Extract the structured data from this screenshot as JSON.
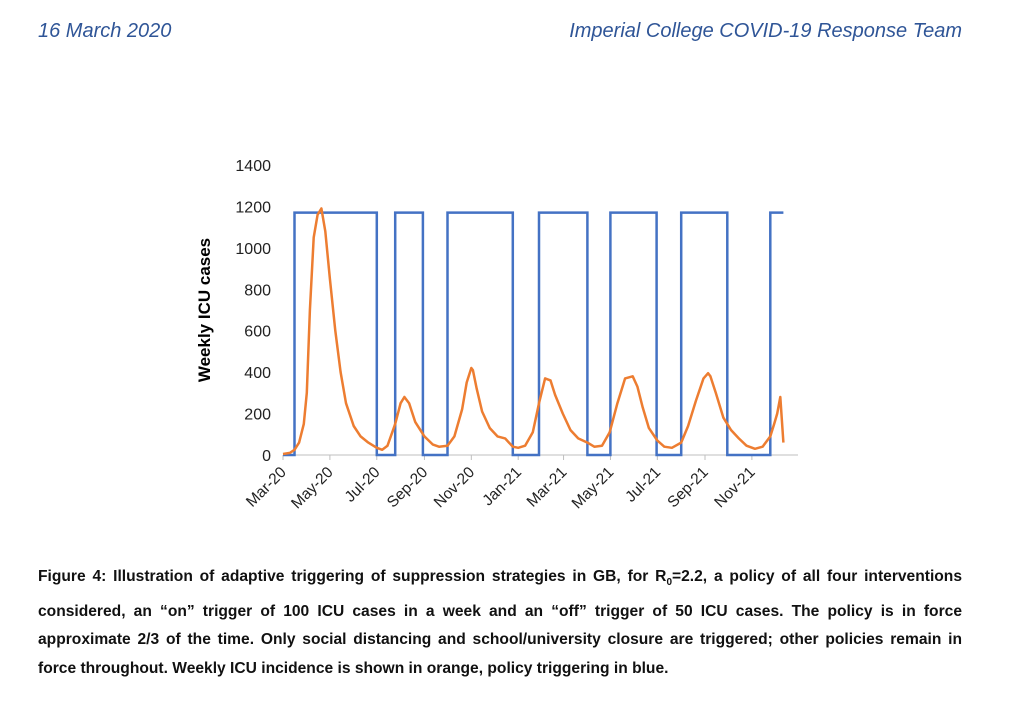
{
  "header": {
    "date": "16 March 2020",
    "team": "Imperial College COVID-19 Response Team"
  },
  "colors": {
    "icu": "#ed7d31",
    "policy": "#4472c4",
    "header": "#2f5597",
    "axis": "#bfbfbf"
  },
  "chart_data": {
    "type": "line",
    "title": "",
    "xlabel": "",
    "ylabel": "Weekly ICU cases",
    "ylim": [
      0,
      1400
    ],
    "yticks": [
      0,
      200,
      400,
      600,
      800,
      1000,
      1200,
      1400
    ],
    "xlim": [
      "2020-03-01",
      "2021-12-31"
    ],
    "xticks": [
      {
        "date": "2020-03-01",
        "label": "Mar-20"
      },
      {
        "date": "2020-05-01",
        "label": "May-20"
      },
      {
        "date": "2020-07-01",
        "label": "Jul-20"
      },
      {
        "date": "2020-09-01",
        "label": "Sep-20"
      },
      {
        "date": "2020-11-01",
        "label": "Nov-20"
      },
      {
        "date": "2021-01-01",
        "label": "Jan-21"
      },
      {
        "date": "2021-03-01",
        "label": "Mar-21"
      },
      {
        "date": "2021-05-01",
        "label": "May-21"
      },
      {
        "date": "2021-07-01",
        "label": "Jul-21"
      },
      {
        "date": "2021-09-01",
        "label": "Sep-21"
      },
      {
        "date": "2021-11-01",
        "label": "Nov-21"
      }
    ],
    "grid": false,
    "legend": "none",
    "series": [
      {
        "key": "icu",
        "color": "#ed7d31",
        "x": [
          "2020-03-01",
          "2020-03-10",
          "2020-03-16",
          "2020-03-22",
          "2020-03-28",
          "2020-04-01",
          "2020-04-05",
          "2020-04-10",
          "2020-04-15",
          "2020-04-20",
          "2020-04-25",
          "2020-05-01",
          "2020-05-08",
          "2020-05-15",
          "2020-05-22",
          "2020-06-01",
          "2020-06-10",
          "2020-06-20",
          "2020-07-01",
          "2020-07-08",
          "2020-07-15",
          "2020-07-25",
          "2020-08-01",
          "2020-08-06",
          "2020-08-12",
          "2020-08-20",
          "2020-09-01",
          "2020-09-12",
          "2020-09-20",
          "2020-10-01",
          "2020-10-10",
          "2020-10-20",
          "2020-10-26",
          "2020-11-01",
          "2020-11-03",
          "2020-11-08",
          "2020-11-15",
          "2020-11-25",
          "2020-12-05",
          "2020-12-15",
          "2020-12-25",
          "2021-01-01",
          "2021-01-10",
          "2021-01-20",
          "2021-01-28",
          "2021-02-05",
          "2021-02-12",
          "2021-02-18",
          "2021-02-28",
          "2021-03-10",
          "2021-03-20",
          "2021-04-01",
          "2021-04-10",
          "2021-04-20",
          "2021-04-30",
          "2021-05-10",
          "2021-05-20",
          "2021-05-30",
          "2021-06-05",
          "2021-06-12",
          "2021-06-20",
          "2021-07-01",
          "2021-07-10",
          "2021-07-20",
          "2021-08-01",
          "2021-08-10",
          "2021-08-20",
          "2021-08-30",
          "2021-09-05",
          "2021-09-08",
          "2021-09-15",
          "2021-09-25",
          "2021-10-05",
          "2021-10-15",
          "2021-10-25",
          "2021-11-05",
          "2021-11-15",
          "2021-11-25",
          "2021-11-30",
          "2021-12-04",
          "2021-12-08",
          "2021-12-12"
        ],
        "values": [
          5,
          10,
          25,
          60,
          150,
          300,
          700,
          1050,
          1160,
          1190,
          1080,
          850,
          600,
          400,
          250,
          140,
          90,
          60,
          35,
          25,
          45,
          150,
          250,
          280,
          250,
          160,
          90,
          50,
          40,
          45,
          90,
          220,
          350,
          420,
          410,
          320,
          210,
          130,
          90,
          80,
          40,
          35,
          45,
          110,
          250,
          370,
          360,
          290,
          200,
          120,
          80,
          60,
          40,
          45,
          110,
          250,
          370,
          380,
          330,
          230,
          130,
          70,
          40,
          35,
          60,
          140,
          260,
          370,
          395,
          380,
          300,
          180,
          120,
          80,
          45,
          30,
          40,
          90,
          150,
          200,
          280,
          60
        ]
      },
      {
        "key": "policy",
        "color": "#4472c4",
        "value_on": 1170,
        "value_off": 0,
        "on_periods": [
          [
            "2020-03-16",
            "2020-07-01"
          ],
          [
            "2020-07-25",
            "2020-08-30"
          ],
          [
            "2020-10-01",
            "2020-12-25"
          ],
          [
            "2021-01-28",
            "2021-04-01"
          ],
          [
            "2021-05-01",
            "2021-06-30"
          ],
          [
            "2021-08-01",
            "2021-09-30"
          ],
          [
            "2021-11-25",
            "2021-12-12"
          ]
        ]
      }
    ]
  },
  "caption": {
    "part1": "Figure 4: Illustration of adaptive triggering of suppression strategies in GB, for R",
    "subscript": "0",
    "part2": "=2.2, a policy of all four interventions considered, an “on” trigger of 100 ICU cases in a week and an “off” trigger of 50 ICU cases.  The policy is in force approximate 2/3 of the time. Only social distancing and school/university closure are triggered; other policies remain in force throughout. Weekly ICU incidence is shown in orange, policy triggering in blue."
  }
}
